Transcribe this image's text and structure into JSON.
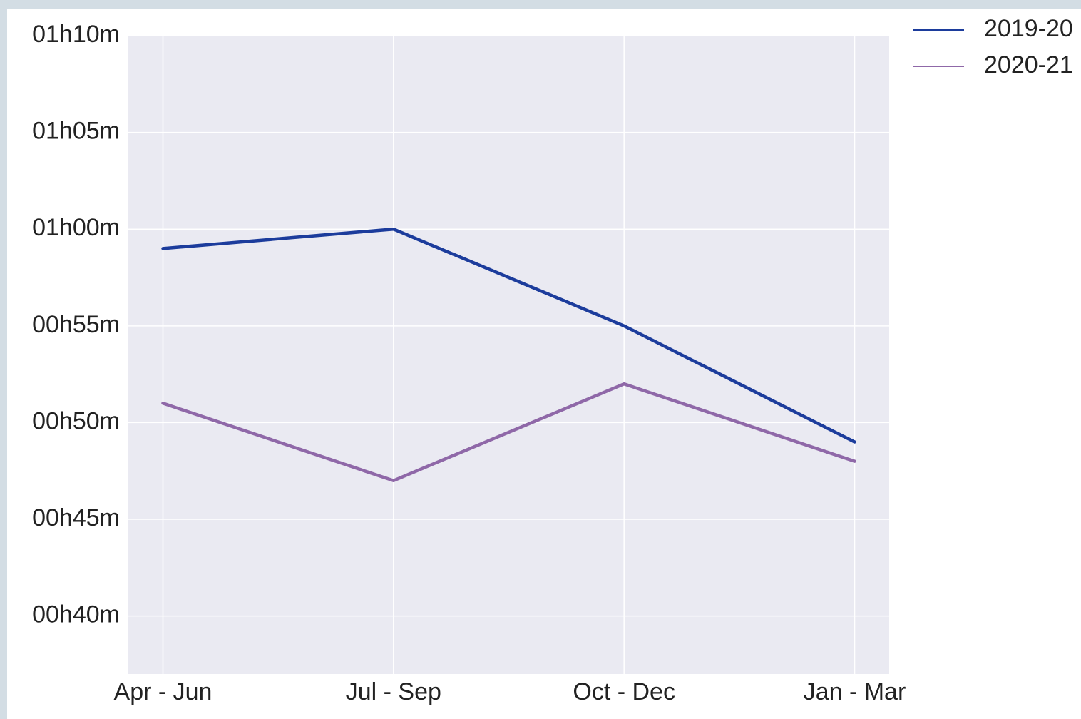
{
  "chart_data": {
    "type": "line",
    "categories": [
      "Apr - Jun",
      "Jul - Sep",
      "Oct - Dec",
      "Jan - Mar"
    ],
    "series": [
      {
        "name": "2019-20",
        "color": "#1c3c9c",
        "values": [
          59,
          60,
          55,
          49
        ]
      },
      {
        "name": "2020-21",
        "color": "#8f68a8",
        "values": [
          51,
          47,
          52,
          48
        ]
      }
    ],
    "ylim": [
      37,
      70
    ],
    "yticks": [
      {
        "value": 40,
        "label": "00h40m"
      },
      {
        "value": 45,
        "label": "00h45m"
      },
      {
        "value": 50,
        "label": "00h50m"
      },
      {
        "value": 55,
        "label": "00h55m"
      },
      {
        "value": 60,
        "label": "01h00m"
      },
      {
        "value": 65,
        "label": "01h05m"
      },
      {
        "value": 70,
        "label": "01h10m"
      }
    ],
    "grid": true,
    "legend": "upper right"
  }
}
